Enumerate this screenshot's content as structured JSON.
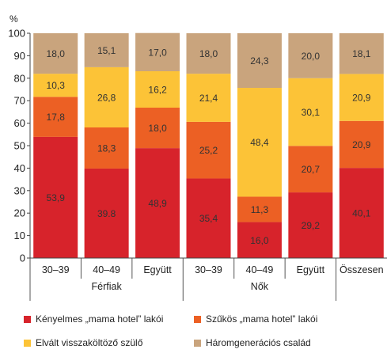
{
  "chart_data": {
    "type": "bar",
    "stacked": true,
    "unit_label": "%",
    "ylim": [
      0,
      100
    ],
    "yticks": [
      0,
      10,
      20,
      30,
      40,
      50,
      60,
      70,
      80,
      90,
      100
    ],
    "categories": [
      "30–39",
      "40–49",
      "Együtt",
      "30–39",
      "40–49",
      "Együtt",
      "Összesen"
    ],
    "groups": [
      {
        "label": "Férfiak",
        "categories": [
          "30–39",
          "40–49",
          "Együtt"
        ]
      },
      {
        "label": "Nők",
        "categories": [
          "30–39",
          "40–49",
          "Együtt"
        ]
      },
      {
        "label": "",
        "categories": [
          "Összesen"
        ]
      }
    ],
    "series": [
      {
        "name": "Kényelmes „mama hotel” lakói",
        "color": "#d7232b",
        "values": [
          53.9,
          39.8,
          48.9,
          35.4,
          16.0,
          29.2,
          40.1
        ]
      },
      {
        "name": "Szűkös „mama hotel” lakói",
        "color": "#ec6024",
        "values": [
          17.8,
          18.3,
          18.0,
          25.2,
          11.3,
          20.7,
          20.9
        ]
      },
      {
        "name": "Elvált visszaköltöző szülő",
        "color": "#fcc337",
        "values": [
          10.3,
          26.8,
          16.2,
          21.4,
          48.4,
          30.1,
          20.9
        ]
      },
      {
        "name": "Háromgenerációs család",
        "color": "#c9a47d",
        "values": [
          18.0,
          15.1,
          17.0,
          18.0,
          24.3,
          20.0,
          18.1
        ]
      }
    ],
    "data_labels": [
      [
        "53,9",
        "39.8",
        "48,9",
        "35,4",
        "16,0",
        "29,2",
        "40,1"
      ],
      [
        "17,8",
        "18,3",
        "18,0",
        "25,2",
        "11,3",
        "20,7",
        "20,9"
      ],
      [
        "10,3",
        "26,8",
        "16,2",
        "21,4",
        "48,4",
        "30,1",
        "20,9"
      ],
      [
        "18,0",
        "15,1",
        "17,0",
        "18,0",
        "24,3",
        "20,0",
        "18,1"
      ]
    ],
    "grid": false,
    "legend_position": "bottom"
  }
}
